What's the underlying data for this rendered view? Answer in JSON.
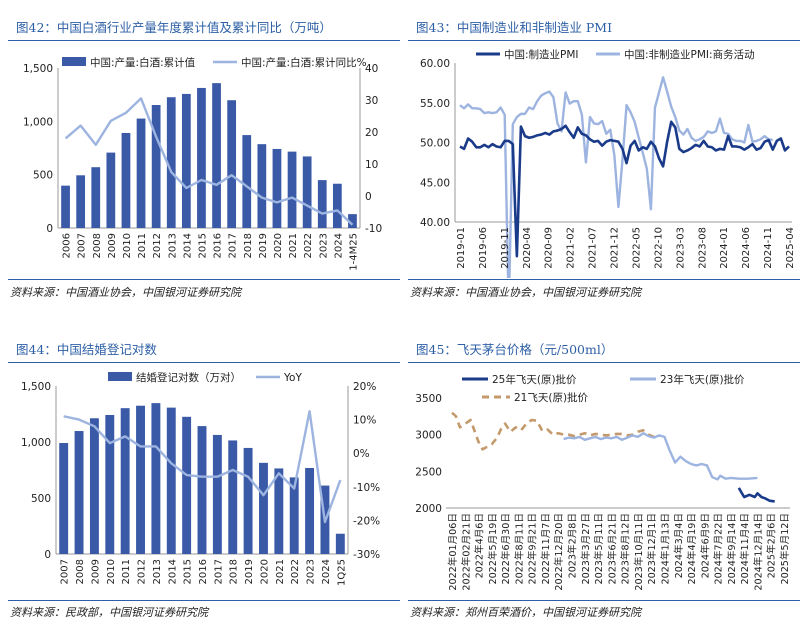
{
  "colors": {
    "dark_blue": "#3a5aa8",
    "navy": "#1a3a8a",
    "light_blue": "#9db4e0",
    "gold": "#c49a6c",
    "accent": "#2d5fa6"
  },
  "panels": [
    {
      "title": "图42：中国白酒行业产量年度累计值及累计同比（万吨）",
      "source": "资料来源：中国酒业协会，中国银河证券研究院"
    },
    {
      "title": "图43：中国制造业和非制造业 PMI",
      "source": "资料来源：中国酒业协会，中国银河证券研究院"
    },
    {
      "title": "图44：中国结婚登记对数",
      "source": "资料来源：民政部，中国银河证券研究院"
    },
    {
      "title": "图45：飞天茅台价格（元/500ml）",
      "source": "资料来源：郑州百荣酒价，中国银河证券研究院"
    }
  ],
  "chart_data": [
    {
      "type": "bar",
      "categories": [
        "2006",
        "2007",
        "2008",
        "2009",
        "2010",
        "2011",
        "2012",
        "2013",
        "2014",
        "2015",
        "2016",
        "2017",
        "2018",
        "2019",
        "2020",
        "2021",
        "2022",
        "2023",
        "2024",
        "1-4M25"
      ],
      "series": [
        {
          "name": "中国:产量:白酒:累计值",
          "type": "bar",
          "axis": "left",
          "values": [
            397,
            494,
            570,
            707,
            891,
            1026,
            1153,
            1226,
            1257,
            1313,
            1358,
            1198,
            871,
            786,
            741,
            716,
            671,
            449,
            415,
            130
          ]
        },
        {
          "name": "中国:产量:白酒:累计同比%",
          "type": "line",
          "axis": "right",
          "values": [
            18,
            22,
            16,
            23.5,
            26,
            30.5,
            18.5,
            7.5,
            2.5,
            5,
            3.5,
            6.5,
            3,
            -0.5,
            -2,
            -0.5,
            -3,
            -5.5,
            -4.5,
            -9
          ]
        }
      ],
      "ylim_left": [
        0,
        1500
      ],
      "yticks_left": [
        "0",
        "500",
        "1,000",
        "1,500"
      ],
      "ylim_right": [
        -10,
        40
      ],
      "yticks_right": [
        "-10",
        "0",
        "10",
        "20",
        "30",
        "40"
      ],
      "legend": "top"
    },
    {
      "type": "line",
      "x_labels": [
        "2019-01",
        "2019-06",
        "2019-11",
        "2020-04",
        "2020-09",
        "2021-02",
        "2021-07",
        "2021-12",
        "2022-05",
        "2022-10",
        "2023-03",
        "2023-08",
        "2024-01",
        "2024-06",
        "2024-11",
        "2025-04"
      ],
      "series": [
        {
          "name": "中国:制造业PMI",
          "values": [
            49.5,
            49.2,
            50.5,
            50.1,
            49.4,
            49.4,
            49.7,
            49.4,
            49.8,
            49.5,
            49.4,
            50.2,
            50.2,
            49.8,
            35.7,
            52.0,
            50.8,
            50.6,
            50.7,
            50.9,
            51.0,
            51.2,
            51.0,
            51.4,
            51.5,
            51.7,
            52.1,
            51.3,
            50.6,
            51.9,
            51.1,
            50.9,
            50.4,
            50.1,
            50.2,
            49.6,
            50.1,
            50.3,
            50.2,
            50.1,
            49.2,
            47.4,
            49.6,
            50.2,
            49.0,
            49.4,
            49.2,
            50.1,
            49.5,
            48.0,
            47.0,
            50.1,
            52.6,
            51.9,
            49.2,
            48.8,
            49.0,
            49.3,
            49.7,
            49.5,
            50.2,
            49.5,
            49.4,
            49.0,
            49.2,
            49.1,
            50.8,
            49.5,
            49.5,
            49.4,
            49.1,
            49.4,
            49.8,
            49.1,
            49.3,
            50.1,
            50.3,
            49.1,
            50.2,
            50.5,
            49.0,
            49.5
          ]
        },
        {
          "name": "中国:非制造业PMI:商务活动",
          "values": [
            54.7,
            54.3,
            54.8,
            54.3,
            54.3,
            54.2,
            53.7,
            53.8,
            53.7,
            53.8,
            54.4,
            53.5,
            28.9,
            52.3,
            53.2,
            53.6,
            53.6,
            54.4,
            54.2,
            55.2,
            55.9,
            56.2,
            56.4,
            55.7,
            52.4,
            51.4,
            56.3,
            54.9,
            55.2,
            55.2,
            53.5,
            47.5,
            53.2,
            52.4,
            52.3,
            52.7,
            51.1,
            51.6,
            48.4,
            41.9,
            47.8,
            54.7,
            53.8,
            52.6,
            50.6,
            48.7,
            46.7,
            41.6,
            54.4,
            56.3,
            58.2,
            56.4,
            54.5,
            53.2,
            51.5,
            51.0,
            51.7,
            50.6,
            50.2,
            50.4,
            50.7,
            51.4,
            51.2,
            51.4,
            53.0,
            51.2,
            51.1,
            50.4,
            50.2,
            50.2,
            50.0,
            52.2,
            50.1,
            50.2,
            50.4,
            50.8,
            50.4,
            50.3
          ]
        }
      ],
      "ylim": [
        40,
        60
      ],
      "yticks": [
        "40.00",
        "45.00",
        "50.00",
        "55.00",
        "60.00"
      ],
      "legend": "top"
    },
    {
      "type": "bar",
      "categories": [
        "2007",
        "2008",
        "2009",
        "2010",
        "2011",
        "2012",
        "2013",
        "2014",
        "2015",
        "2016",
        "2017",
        "2018",
        "2019",
        "2020",
        "2021",
        "2022",
        "2023",
        "2024",
        "1Q25"
      ],
      "series": [
        {
          "name": "结婚登记对数（万对）",
          "type": "bar",
          "axis": "left",
          "values": [
            991,
            1098,
            1212,
            1241,
            1302,
            1324,
            1347,
            1307,
            1225,
            1142,
            1063,
            1014,
            947,
            814,
            764,
            684,
            768,
            611,
            181
          ]
        },
        {
          "name": "YoY",
          "type": "line",
          "axis": "right",
          "values": [
            11,
            10,
            8,
            3,
            5,
            2,
            2,
            -3,
            -6.5,
            -7,
            -7,
            -5,
            -7,
            -12.5,
            -6,
            -10.5,
            12.5,
            -20.5,
            -8
          ]
        }
      ],
      "ylim_left": [
        0,
        1500
      ],
      "yticks_left": [
        "0",
        "500",
        "1,000",
        "1,500"
      ],
      "ylim_right": [
        -30,
        20
      ],
      "yticks_right": [
        "-30%",
        "-20%",
        "-10%",
        "0%",
        "10%",
        "20%"
      ],
      "legend": "top"
    },
    {
      "type": "line",
      "x_labels": [
        "2022年01月06日",
        "2022年02月21日",
        "2022年4月6日",
        "2022年5月19日",
        "2022年6月30日",
        "2022年8月11日",
        "2022年9月21日",
        "2022年11月7日",
        "2022年12月20日",
        "2023年2月8日",
        "2023年3月27日",
        "2023年5月11日",
        "2023年6月21日",
        "2023年8月12日",
        "2023年10月11日",
        "2023年12月1日",
        "2024年1月13日",
        "2024年3月4日",
        "2024年4月19日",
        "2024年6月9日",
        "2024年7月22日",
        "2024年9月14日",
        "2024年11月4日",
        "2024年12月14日",
        "2025年2月6日",
        "2025年5月12日"
      ],
      "series": [
        {
          "name": "25年飞天(原)批价",
          "style": "solid",
          "values": [
            [
              21.6,
              2275
            ],
            [
              21.8,
              2210
            ],
            [
              22.0,
              2150
            ],
            [
              22.4,
              2180
            ],
            [
              22.8,
              2150
            ],
            [
              23.0,
              2200
            ],
            [
              23.3,
              2150
            ],
            [
              23.6,
              2130
            ],
            [
              23.9,
              2100
            ],
            [
              24.3,
              2090
            ]
          ]
        },
        {
          "name": "23年飞天(原)批价",
          "style": "solid",
          "values": [
            [
              8.4,
              2940
            ],
            [
              8.8,
              2960
            ],
            [
              9.2,
              2950
            ],
            [
              9.6,
              2970
            ],
            [
              10.0,
              2930
            ],
            [
              10.4,
              2950
            ],
            [
              10.8,
              2970
            ],
            [
              11.2,
              2940
            ],
            [
              11.6,
              2960
            ],
            [
              12.0,
              2950
            ],
            [
              12.4,
              2970
            ],
            [
              12.8,
              2930
            ],
            [
              13.2,
              2960
            ],
            [
              13.6,
              2990
            ],
            [
              14.0,
              2970
            ],
            [
              14.4,
              3020
            ],
            [
              14.8,
              2980
            ],
            [
              15.2,
              2960
            ],
            [
              15.6,
              2990
            ],
            [
              16.0,
              2970
            ],
            [
              16.4,
              2780
            ],
            [
              16.8,
              2620
            ],
            [
              17.2,
              2700
            ],
            [
              17.6,
              2640
            ],
            [
              18.0,
              2600
            ],
            [
              18.4,
              2580
            ],
            [
              18.8,
              2600
            ],
            [
              19.2,
              2580
            ],
            [
              19.6,
              2420
            ],
            [
              20.0,
              2390
            ],
            [
              20.2,
              2440
            ],
            [
              20.6,
              2400
            ],
            [
              21.0,
              2410
            ],
            [
              21.6,
              2400
            ],
            [
              22.3,
              2400
            ],
            [
              23.0,
              2410
            ]
          ]
        },
        {
          "name": "21飞天(原)批价",
          "style": "dashed",
          "values": [
            [
              0.0,
              3300
            ],
            [
              0.3,
              3250
            ],
            [
              0.6,
              3100
            ],
            [
              1.0,
              3150
            ],
            [
              1.4,
              3200
            ],
            [
              1.7,
              3050
            ],
            [
              2.0,
              2900
            ],
            [
              2.3,
              2800
            ],
            [
              2.6,
              2830
            ],
            [
              3.0,
              2870
            ],
            [
              3.4,
              2960
            ],
            [
              3.7,
              3080
            ],
            [
              4.0,
              3150
            ],
            [
              4.4,
              3040
            ],
            [
              4.8,
              3100
            ],
            [
              5.2,
              3060
            ],
            [
              5.6,
              3150
            ],
            [
              6.0,
              3200
            ],
            [
              6.4,
              3190
            ],
            [
              6.8,
              3050
            ],
            [
              7.2,
              3070
            ],
            [
              7.6,
              3000
            ],
            [
              8.0,
              3020
            ],
            [
              8.4,
              3000
            ],
            [
              8.8,
              3000
            ],
            [
              9.2,
              2980
            ],
            [
              9.6,
              3000
            ],
            [
              10.0,
              3020
            ],
            [
              10.4,
              2990
            ],
            [
              10.8,
              3010
            ],
            [
              11.2,
              3000
            ],
            [
              11.6,
              2990
            ],
            [
              12.0,
              3000
            ],
            [
              12.4,
              3010
            ],
            [
              12.8,
              3010
            ],
            [
              13.2,
              2990
            ],
            [
              13.6,
              3000
            ],
            [
              14.0,
              3040
            ],
            [
              14.4,
              3060
            ],
            [
              14.8,
              3000
            ],
            [
              15.2,
              2970
            ],
            [
              15.6,
              2980
            ]
          ]
        }
      ],
      "ylim": [
        2000,
        3500
      ],
      "yticks": [
        "2000",
        "2500",
        "3000",
        "3500"
      ],
      "legend": "top"
    }
  ]
}
